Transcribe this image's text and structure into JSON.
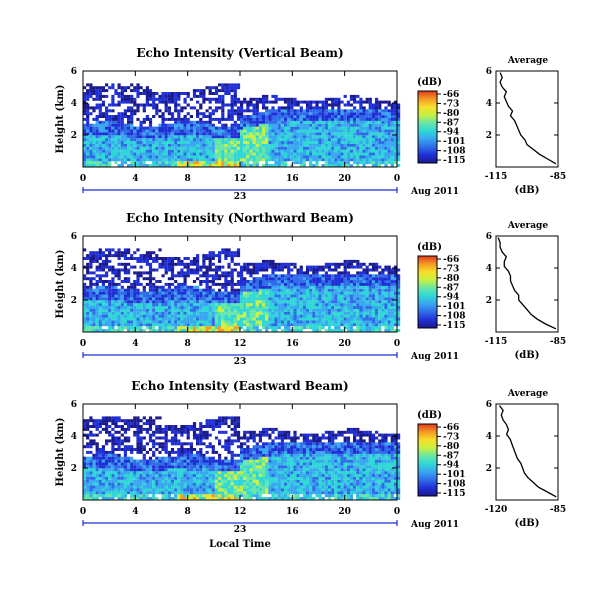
{
  "colors": {
    "colormap": [
      "#1a1a8c",
      "#1f2fd6",
      "#2f6be8",
      "#38a6f0",
      "#2fd6d6",
      "#66e6a6",
      "#c8f040",
      "#f6e02a",
      "#f59a22",
      "#e23a1f"
    ],
    "date_axis": "#1f2fd6"
  },
  "chart_data": [
    {
      "type": "heatmap",
      "title": "Echo Intensity (Vertical Beam)",
      "ylabel": "Height (km)",
      "xlabel": "",
      "x_ticks": [
        "0",
        "4",
        "8",
        "12",
        "16",
        "20",
        "0"
      ],
      "xlim": [
        0,
        24
      ],
      "y_ticks": [
        "6",
        "4",
        "2"
      ],
      "ylim": [
        0,
        6
      ],
      "date_day": "23",
      "date_label": "Aug 2011",
      "colorbar": {
        "unit": "(dB)",
        "ticks": [
          "-66",
          "-73",
          "-80",
          "-87",
          "-94",
          "-101",
          "-108",
          "-115"
        ]
      },
      "profile": {
        "title": "Average",
        "xlabel": "(dB)",
        "x_ticks": [
          "-115",
          "-85"
        ],
        "xlim": [
          -115,
          -85
        ],
        "y_ticks": [
          "6",
          "4",
          "2"
        ],
        "ylim": [
          0,
          6
        ],
        "heights": [
          0.2,
          0.5,
          0.8,
          1.1,
          1.4,
          1.7,
          2.0,
          2.3,
          2.6,
          2.9,
          3.2,
          3.5,
          3.8,
          4.1,
          4.4,
          4.7,
          5.0,
          5.3,
          5.6,
          5.9
        ],
        "values": [
          -86,
          -90,
          -94,
          -97,
          -100,
          -101,
          -103,
          -104,
          -105,
          -106,
          -108,
          -107,
          -109,
          -110,
          -111,
          -110,
          -112,
          -113,
          -112,
          -113
        ]
      }
    },
    {
      "type": "heatmap",
      "title": "Echo Intensity (Northward Beam)",
      "ylabel": "Height (km)",
      "xlabel": "",
      "x_ticks": [
        "0",
        "4",
        "8",
        "12",
        "16",
        "20",
        "0"
      ],
      "xlim": [
        0,
        24
      ],
      "y_ticks": [
        "6",
        "4",
        "2"
      ],
      "ylim": [
        0,
        6
      ],
      "date_day": "23",
      "date_label": "Aug 2011",
      "colorbar": {
        "unit": "(dB)",
        "ticks": [
          "-66",
          "-73",
          "-80",
          "-87",
          "-94",
          "-101",
          "-108",
          "-115"
        ]
      },
      "profile": {
        "title": "Average",
        "xlabel": "(dB)",
        "x_ticks": [
          "-115",
          "-85"
        ],
        "xlim": [
          -115,
          -85
        ],
        "y_ticks": [
          "6",
          "4",
          "2"
        ],
        "ylim": [
          0,
          6
        ],
        "heights": [
          0.2,
          0.5,
          0.8,
          1.1,
          1.4,
          1.7,
          2.0,
          2.3,
          2.6,
          2.9,
          3.2,
          3.5,
          3.8,
          4.1,
          4.4,
          4.7,
          5.0,
          5.3,
          5.6,
          5.9
        ],
        "values": [
          -86,
          -91,
          -95,
          -98,
          -100,
          -102,
          -104,
          -104,
          -106,
          -107,
          -108,
          -108,
          -109,
          -111,
          -111,
          -110,
          -112,
          -113,
          -113,
          -114
        ]
      }
    },
    {
      "type": "heatmap",
      "title": "Echo Intensity (Eastward Beam)",
      "ylabel": "Height (km)",
      "xlabel": "Local Time",
      "x_ticks": [
        "0",
        "4",
        "8",
        "12",
        "16",
        "20",
        "0"
      ],
      "xlim": [
        0,
        24
      ],
      "y_ticks": [
        "6",
        "4",
        "2"
      ],
      "ylim": [
        0,
        6
      ],
      "date_day": "23",
      "date_label": "Aug 2011",
      "colorbar": {
        "unit": "(dB)",
        "ticks": [
          "-66",
          "-73",
          "-80",
          "-87",
          "-94",
          "-101",
          "-108",
          "-115"
        ]
      },
      "profile": {
        "title": "Average",
        "xlabel": "(dB)",
        "x_ticks": [
          "-120",
          "-85"
        ],
        "xlim": [
          -120,
          -85
        ],
        "y_ticks": [
          "6",
          "4",
          "2"
        ],
        "ylim": [
          0,
          6
        ],
        "heights": [
          0.2,
          0.5,
          0.8,
          1.1,
          1.4,
          1.7,
          2.0,
          2.3,
          2.6,
          2.9,
          3.2,
          3.5,
          3.8,
          4.1,
          4.4,
          4.7,
          5.0,
          5.3,
          5.6,
          5.9
        ],
        "values": [
          -86,
          -91,
          -96,
          -99,
          -102,
          -104,
          -105,
          -106,
          -108,
          -109,
          -110,
          -111,
          -112,
          -114,
          -113,
          -114,
          -116,
          -117,
          -116,
          -118
        ]
      }
    }
  ]
}
